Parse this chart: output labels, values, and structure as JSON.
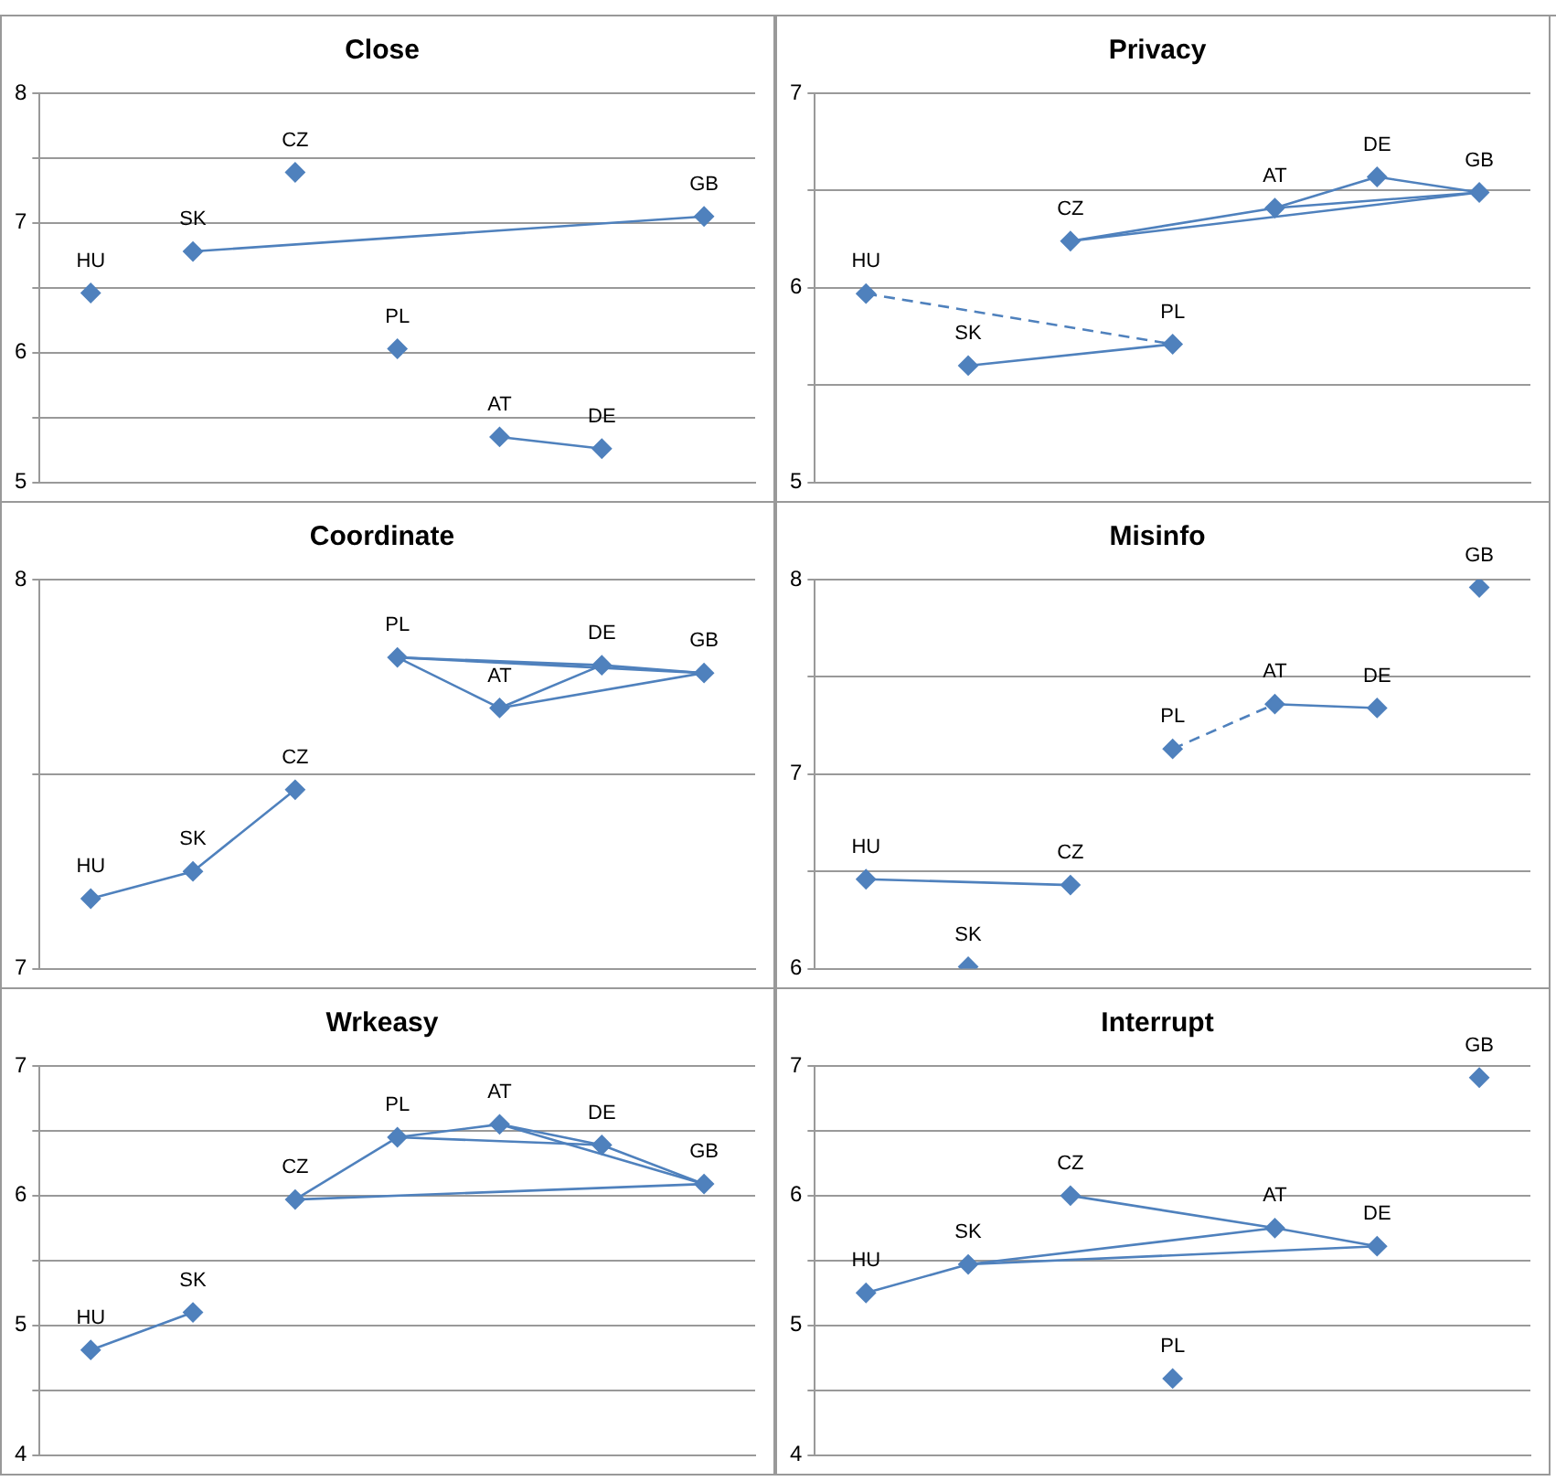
{
  "chart_data": [
    {
      "type": "scatter",
      "title": "Close",
      "categories": [
        null,
        null,
        null,
        null,
        null,
        null,
        null
      ],
      "ylim": [
        5,
        8
      ],
      "yticks": [
        5,
        {
          "value": 5.5,
          "label": null
        },
        6,
        {
          "value": 6.5,
          "label": null
        },
        7,
        {
          "value": 7.5,
          "label": null
        },
        8
      ],
      "grid": "y",
      "legend": false,
      "tick_labels": "y",
      "series": [
        {
          "marker": "diamond",
          "color": "#4f81bd",
          "values": [
            6.46,
            6.78,
            7.39,
            6.03,
            5.35,
            5.26,
            7.05
          ],
          "value_labels": [
            "HU",
            "SK",
            "CZ",
            "PL",
            "AT",
            "DE",
            "GB"
          ]
        },
        {
          "type": "line",
          "marker": "none",
          "color": "#4f81bd",
          "line_style": "solid",
          "values": [
            null,
            6.78,
            null,
            null,
            null,
            null,
            7.05
          ]
        },
        {
          "type": "line",
          "marker": "none",
          "color": "#4f81bd",
          "line_style": "solid",
          "values": [
            null,
            null,
            null,
            null,
            5.35,
            5.26,
            null
          ]
        }
      ]
    },
    {
      "type": "scatter",
      "title": "Privacy",
      "categories": [
        null,
        null,
        null,
        null,
        null,
        null,
        null
      ],
      "ylim": [
        5,
        7
      ],
      "yticks": [
        5,
        {
          "value": 5.5,
          "label": null
        },
        6,
        {
          "value": 6.5,
          "label": null
        },
        7
      ],
      "grid": "y",
      "legend": false,
      "tick_labels": "y",
      "series": [
        {
          "marker": "diamond",
          "color": "#4f81bd",
          "values": [
            5.97,
            5.6,
            6.24,
            5.71,
            6.41,
            6.57,
            6.49
          ],
          "value_labels": [
            "HU",
            "SK",
            "CZ",
            "PL",
            "AT",
            "DE",
            "GB"
          ]
        },
        {
          "type": "line",
          "marker": "none",
          "color": "#4f81bd",
          "line_style": "dashed",
          "values": [
            5.97,
            null,
            null,
            5.71,
            null,
            null,
            null
          ]
        },
        {
          "type": "line",
          "marker": "none",
          "color": "#4f81bd",
          "line_style": "solid",
          "values": [
            null,
            5.6,
            null,
            5.71,
            null,
            null,
            null
          ]
        },
        {
          "type": "line",
          "marker": "none",
          "color": "#4f81bd",
          "line_style": "solid",
          "values": [
            null,
            null,
            6.24,
            null,
            6.41,
            6.57,
            6.49
          ]
        },
        {
          "type": "line",
          "marker": "none",
          "color": "#4f81bd",
          "line_style": "solid",
          "values": [
            null,
            null,
            null,
            null,
            6.41,
            null,
            6.49
          ]
        },
        {
          "type": "line",
          "marker": "none",
          "color": "#4f81bd",
          "line_style": "solid",
          "values": [
            null,
            null,
            6.24,
            null,
            null,
            null,
            6.49
          ]
        }
      ]
    },
    {
      "type": "scatter",
      "title": "Coordinate",
      "categories": [
        null,
        null,
        null,
        null,
        null,
        null,
        null
      ],
      "ylim": [
        7,
        8
      ],
      "yticks": [
        7,
        {
          "value": 7.5,
          "label": null
        },
        8
      ],
      "grid": "y",
      "legend": false,
      "tick_labels": "y",
      "series": [
        {
          "marker": "diamond",
          "color": "#4f81bd",
          "values": [
            7.18,
            7.25,
            7.46,
            7.8,
            7.67,
            7.78,
            7.76
          ],
          "value_labels": [
            "HU",
            "SK",
            "CZ",
            "PL",
            "AT",
            "DE",
            "GB"
          ]
        },
        {
          "type": "line",
          "marker": "none",
          "color": "#4f81bd",
          "line_style": "solid",
          "values": [
            7.18,
            7.25,
            7.46,
            null,
            null,
            null,
            null
          ]
        },
        {
          "type": "line",
          "marker": "none",
          "color": "#4f81bd",
          "line_style": "solid",
          "values": [
            null,
            null,
            null,
            7.8,
            7.67,
            7.78,
            null
          ]
        },
        {
          "type": "line",
          "marker": "none",
          "color": "#4f81bd",
          "line_style": "solid",
          "values": [
            null,
            null,
            null,
            7.8,
            null,
            7.78,
            7.76
          ]
        },
        {
          "type": "line",
          "marker": "none",
          "color": "#4f81bd",
          "line_style": "solid",
          "values": [
            null,
            null,
            null,
            null,
            7.67,
            null,
            7.76
          ]
        },
        {
          "type": "line",
          "marker": "none",
          "color": "#4f81bd",
          "line_style": "solid",
          "values": [
            null,
            null,
            null,
            7.8,
            null,
            null,
            7.76
          ]
        }
      ]
    },
    {
      "type": "scatter",
      "title": "Misinfo",
      "categories": [
        null,
        null,
        null,
        null,
        null,
        null,
        null
      ],
      "ylim": [
        6,
        8
      ],
      "yticks": [
        6,
        {
          "value": 6.5,
          "label": null
        },
        7,
        {
          "value": 7.5,
          "label": null
        },
        8
      ],
      "grid": "y",
      "legend": false,
      "tick_labels": "y",
      "series": [
        {
          "marker": "diamond",
          "color": "#4f81bd",
          "values": [
            6.46,
            6.01,
            6.43,
            7.13,
            7.36,
            7.34,
            7.96
          ],
          "value_labels": [
            "HU",
            "SK",
            "CZ",
            "PL",
            "AT",
            "DE",
            "GB"
          ]
        },
        {
          "type": "line",
          "marker": "none",
          "color": "#4f81bd",
          "line_style": "solid",
          "values": [
            6.46,
            null,
            6.43,
            null,
            null,
            null,
            null
          ]
        },
        {
          "type": "line",
          "marker": "none",
          "color": "#4f81bd",
          "line_style": "dashed",
          "values": [
            null,
            null,
            null,
            7.13,
            7.36,
            null,
            null
          ]
        },
        {
          "type": "line",
          "marker": "none",
          "color": "#4f81bd",
          "line_style": "solid",
          "values": [
            null,
            null,
            null,
            null,
            7.36,
            7.34,
            null
          ]
        }
      ]
    },
    {
      "type": "scatter",
      "title": "Wrkeasy",
      "categories": [
        null,
        null,
        null,
        null,
        null,
        null,
        null
      ],
      "ylim": [
        4,
        7
      ],
      "yticks": [
        4,
        {
          "value": 4.5,
          "label": null
        },
        5,
        {
          "value": 5.5,
          "label": null
        },
        6,
        {
          "value": 6.5,
          "label": null
        },
        7
      ],
      "grid": "y",
      "legend": false,
      "tick_labels": "y",
      "series": [
        {
          "marker": "diamond",
          "color": "#4f81bd",
          "values": [
            4.81,
            5.1,
            5.97,
            6.45,
            6.55,
            6.39,
            6.09
          ],
          "value_labels": [
            "HU",
            "SK",
            "CZ",
            "PL",
            "AT",
            "DE",
            "GB"
          ]
        },
        {
          "type": "line",
          "marker": "none",
          "color": "#4f81bd",
          "line_style": "solid",
          "values": [
            4.81,
            5.1,
            null,
            null,
            null,
            null,
            null
          ]
        },
        {
          "type": "line",
          "marker": "none",
          "color": "#4f81bd",
          "line_style": "solid",
          "values": [
            null,
            null,
            5.97,
            6.45,
            6.55,
            6.39,
            6.09
          ]
        },
        {
          "type": "line",
          "marker": "none",
          "color": "#4f81bd",
          "line_style": "solid",
          "values": [
            null,
            null,
            5.97,
            null,
            null,
            null,
            6.09
          ]
        },
        {
          "type": "line",
          "marker": "none",
          "color": "#4f81bd",
          "line_style": "solid",
          "values": [
            null,
            null,
            null,
            6.45,
            null,
            6.39,
            null
          ]
        },
        {
          "type": "line",
          "marker": "none",
          "color": "#4f81bd",
          "line_style": "solid",
          "values": [
            null,
            null,
            null,
            null,
            6.55,
            null,
            6.09
          ]
        }
      ]
    },
    {
      "type": "scatter",
      "title": "Interrupt",
      "categories": [
        null,
        null,
        null,
        null,
        null,
        null,
        null
      ],
      "ylim": [
        4,
        7
      ],
      "yticks": [
        4,
        {
          "value": 4.5,
          "label": null
        },
        5,
        {
          "value": 5.5,
          "label": null
        },
        6,
        {
          "value": 6.5,
          "label": null
        },
        7
      ],
      "grid": "y",
      "legend": false,
      "tick_labels": "y",
      "series": [
        {
          "marker": "diamond",
          "color": "#4f81bd",
          "values": [
            5.25,
            5.47,
            6.0,
            4.59,
            5.75,
            5.61,
            6.91
          ],
          "value_labels": [
            "HU",
            "SK",
            "CZ",
            "PL",
            "AT",
            "DE",
            "GB"
          ]
        },
        {
          "type": "line",
          "marker": "none",
          "color": "#4f81bd",
          "line_style": "solid",
          "values": [
            5.25,
            5.47,
            null,
            null,
            5.75,
            null,
            null
          ]
        },
        {
          "type": "line",
          "marker": "none",
          "color": "#4f81bd",
          "line_style": "solid",
          "values": [
            null,
            null,
            6.0,
            null,
            5.75,
            5.61,
            null
          ]
        },
        {
          "type": "line",
          "marker": "none",
          "color": "#4f81bd",
          "line_style": "solid",
          "values": [
            null,
            5.47,
            null,
            null,
            null,
            5.61,
            null
          ]
        }
      ]
    }
  ]
}
